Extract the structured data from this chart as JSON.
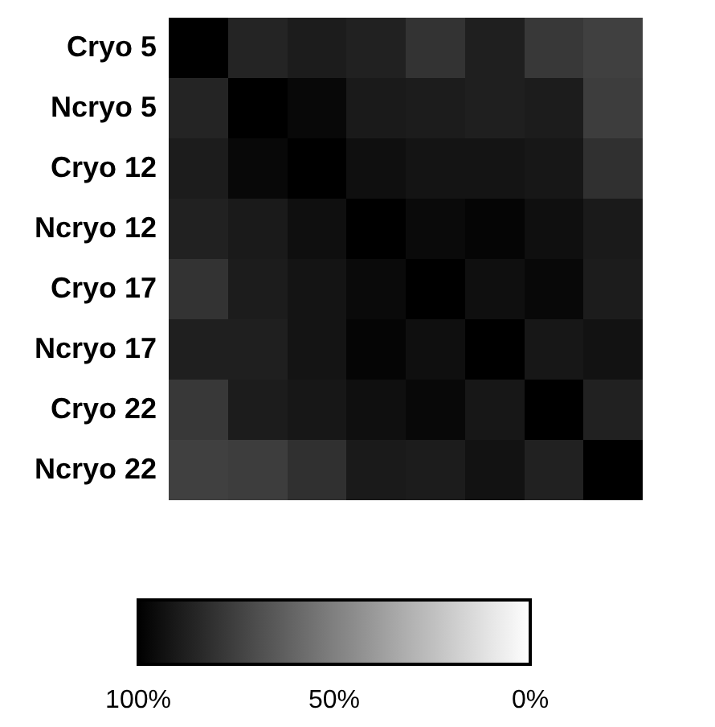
{
  "chart_data": {
    "type": "heatmap",
    "categories": [
      null,
      null,
      null,
      null,
      null,
      null,
      null,
      null
    ],
    "y_categories": [
      "Cryo 5",
      "Ncryo 5",
      "Cryo 12",
      "Ncryo 12",
      "Cryo 17",
      "Ncryo 17",
      "Cryo 22",
      "Ncryo 22"
    ],
    "cells": [
      [
        100,
        86,
        89,
        87,
        80,
        88,
        78,
        75
      ],
      [
        86,
        100,
        97,
        90,
        89,
        88,
        89,
        76
      ],
      [
        89,
        97,
        100,
        94,
        92,
        92,
        91,
        81
      ],
      [
        87,
        90,
        94,
        100,
        96,
        98,
        94,
        90
      ],
      [
        80,
        89,
        92,
        96,
        100,
        94,
        97,
        89
      ],
      [
        88,
        88,
        92,
        98,
        94,
        100,
        91,
        93
      ],
      [
        78,
        89,
        91,
        94,
        97,
        91,
        100,
        87
      ],
      [
        75,
        76,
        81,
        90,
        89,
        93,
        87,
        100
      ]
    ],
    "clim": [
      100,
      0
    ],
    "cticks": [
      {
        "value": 100,
        "label": "100%"
      },
      {
        "value": 50,
        "label": "50%"
      },
      {
        "value": 0,
        "label": "0%"
      }
    ],
    "tick_labels": "y"
  }
}
